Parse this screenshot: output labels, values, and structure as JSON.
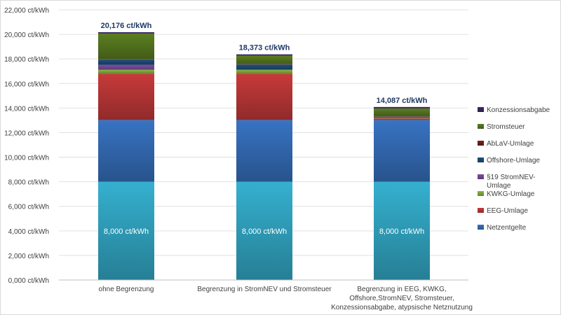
{
  "chart_data": {
    "type": "bar",
    "stacked": true,
    "title": "",
    "xlabel": "",
    "ylabel": "",
    "ylim": [
      0,
      22000
    ],
    "ytick_step": 2000,
    "ytick_labels": [
      "0,000 ct/kWh",
      "2,000 ct/kWh",
      "4,000 ct/kWh",
      "6,000 ct/kWh",
      "8,000 ct/kWh",
      "10,000 ct/kWh",
      "12,000 ct/kWh",
      "14,000 ct/kWh",
      "16,000 ct/kWh",
      "18,000 ct/kWh",
      "20,000 ct/kWh",
      "22,000 ct/kWh"
    ],
    "grid": true,
    "legend_position": "right",
    "categories": [
      [
        "ohne Begrenzung"
      ],
      [
        "Begrenzung in StromNEV und Stromsteuer"
      ],
      [
        "Begrenzung in EEG, KWKG,",
        "Offshore,StromNEV, Stromsteuer,",
        "Konzessionsabgabe, atypsische Netznutzung"
      ]
    ],
    "totals": [
      "20,176 ct/kWh",
      "18,373 ct/kWh",
      "14,087 ct/kWh"
    ],
    "base_labels": [
      "8,000 ct/kWh",
      "8,000 ct/kWh",
      "8,000 ct/kWh"
    ],
    "series": [
      {
        "name": "",
        "values": [
          8000,
          8000,
          8000
        ]
      },
      {
        "name": "Netzentgelte",
        "values": [
          5030,
          5030,
          5030
        ]
      },
      {
        "name": "EEG-Umlage",
        "values": [
          3760,
          3760,
          120
        ]
      },
      {
        "name": "KWKG-Umlage",
        "values": [
          330,
          330,
          40
        ]
      },
      {
        "name": "§19 StromNEV-Umlage",
        "values": [
          400,
          0,
          40
        ]
      },
      {
        "name": "Offshore-Umlage",
        "values": [
          420,
          420,
          60
        ]
      },
      {
        "name": "AbLaV-Umlage",
        "values": [
          30,
          30,
          30
        ]
      },
      {
        "name": "Stromsteuer",
        "values": [
          2100,
          700,
          650
        ]
      },
      {
        "name": "Konzessionsabgabe",
        "values": [
          106,
          103,
          117
        ]
      }
    ],
    "colors": [
      "#35b0cf",
      "#3873c2",
      "#c83a3a",
      "#8cb542",
      "#7e4fa3",
      "#1f4f7f",
      "#7a1f1f",
      "#5b7f22",
      "#3e2a66"
    ],
    "legend_order": [
      "Konzessionsabgabe",
      "Stromsteuer",
      "AbLaV-Umlage",
      "Offshore-Umlage",
      "§19 StromNEV-Umlage",
      "KWKG-Umlage",
      "EEG-Umlage",
      "Netzentgelte"
    ]
  }
}
